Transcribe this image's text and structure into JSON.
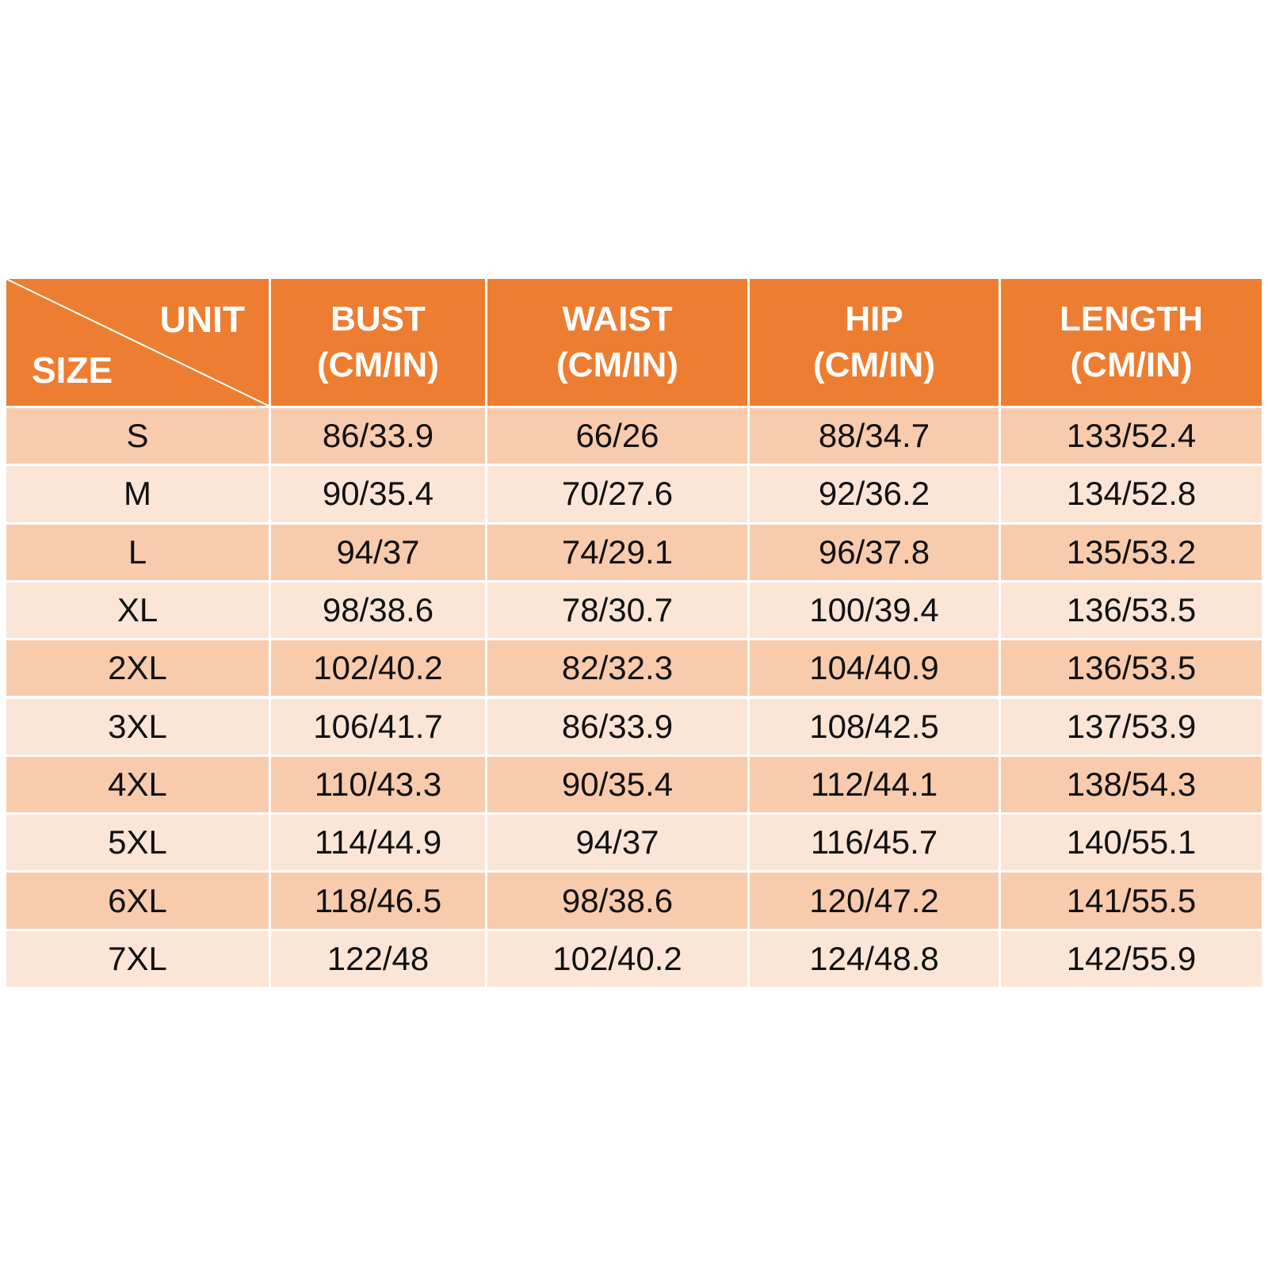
{
  "header": {
    "unit": "UNIT",
    "size": "SIZE",
    "columns": [
      {
        "name": "BUST",
        "unit": "(CM/IN)"
      },
      {
        "name": "WAIST",
        "unit": "(CM/IN)"
      },
      {
        "name": "HIP",
        "unit": "(CM/IN)"
      },
      {
        "name": "LENGTH",
        "unit": "(CM/IN)"
      }
    ]
  },
  "table": {
    "rows": [
      [
        "S",
        "86/33.9",
        "66/26",
        "88/34.7",
        "133/52.4"
      ],
      [
        "M",
        "90/35.4",
        "70/27.6",
        "92/36.2",
        "134/52.8"
      ],
      [
        "L",
        "94/37",
        "74/29.1",
        "96/37.8",
        "135/53.2"
      ],
      [
        "XL",
        "98/38.6",
        "78/30.7",
        "100/39.4",
        "136/53.5"
      ],
      [
        "2XL",
        "102/40.2",
        "82/32.3",
        "104/40.9",
        "136/53.5"
      ],
      [
        "3XL",
        "106/41.7",
        "86/33.9",
        "108/42.5",
        "137/53.9"
      ],
      [
        "4XL",
        "110/43.3",
        "90/35.4",
        "112/44.1",
        "138/54.3"
      ],
      [
        "5XL",
        "114/44.9",
        "94/37",
        "116/45.7",
        "140/55.1"
      ],
      [
        "6XL",
        "118/46.5",
        "98/38.6",
        "120/47.2",
        "141/55.5"
      ],
      [
        "7XL",
        "122/48",
        "102/40.2",
        "124/48.8",
        "142/55.9"
      ]
    ]
  }
}
